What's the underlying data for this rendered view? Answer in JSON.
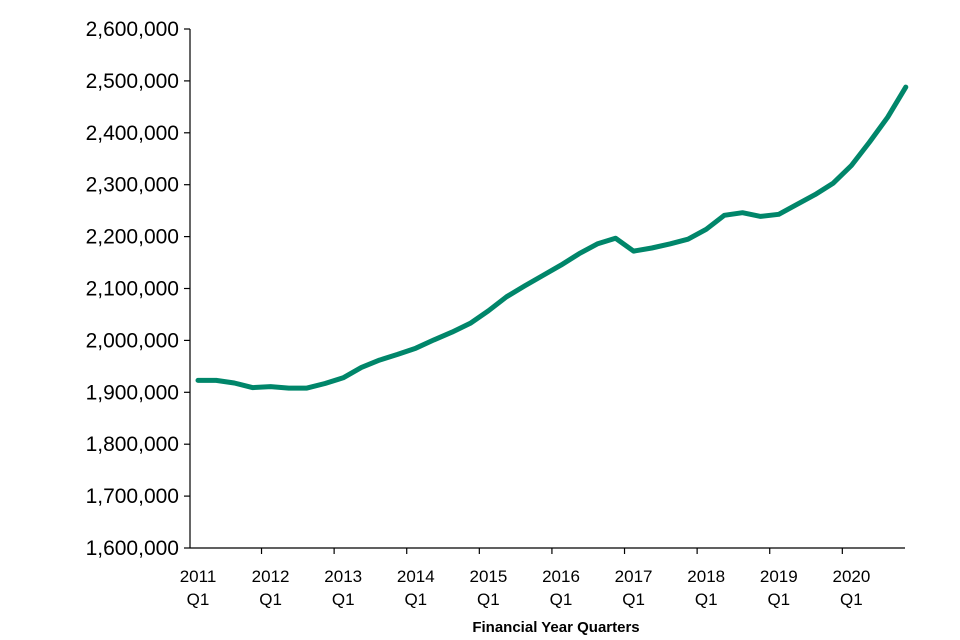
{
  "chart_data": {
    "type": "line",
    "title": "",
    "xlabel": "Financial Year Quarters",
    "ylabel": "",
    "ylim": [
      1600000,
      2600000
    ],
    "yticks": [
      1600000,
      1700000,
      1800000,
      1900000,
      2000000,
      2100000,
      2200000,
      2300000,
      2400000,
      2500000,
      2600000
    ],
    "ytick_labels": [
      "1,600,000",
      "1,700,000",
      "1,800,000",
      "1,900,000",
      "2,000,000",
      "2,100,000",
      "2,200,000",
      "2,300,000",
      "2,400,000",
      "2,500,000",
      "2,600,000"
    ],
    "xtick_labels": [
      {
        "year": "2011",
        "quarter": "Q1"
      },
      {
        "year": "2012",
        "quarter": "Q1"
      },
      {
        "year": "2013",
        "quarter": "Q1"
      },
      {
        "year": "2014",
        "quarter": "Q1"
      },
      {
        "year": "2015",
        "quarter": "Q1"
      },
      {
        "year": "2016",
        "quarter": "Q1"
      },
      {
        "year": "2017",
        "quarter": "Q1"
      },
      {
        "year": "2018",
        "quarter": "Q1"
      },
      {
        "year": "2019",
        "quarter": "Q1"
      },
      {
        "year": "2020",
        "quarter": "Q1"
      }
    ],
    "x_start_year": 2011,
    "grid": false,
    "legend": "none",
    "series": [
      {
        "color": "#00866a",
        "values": [
          1923000,
          1923000,
          1918000,
          1909000,
          1911000,
          1908000,
          1908000,
          1917000,
          1928000,
          1948000,
          1962000,
          1973000,
          1985000,
          2001000,
          2016000,
          2033000,
          2057000,
          2084000,
          2105000,
          2125000,
          2145000,
          2167000,
          2186000,
          2197000,
          2172000,
          2178000,
          2186000,
          2195000,
          2214000,
          2241000,
          2246000,
          2239000,
          2243000,
          2262000,
          2281000,
          2303000,
          2337000,
          2382000,
          2430000,
          2488000
        ]
      }
    ]
  }
}
